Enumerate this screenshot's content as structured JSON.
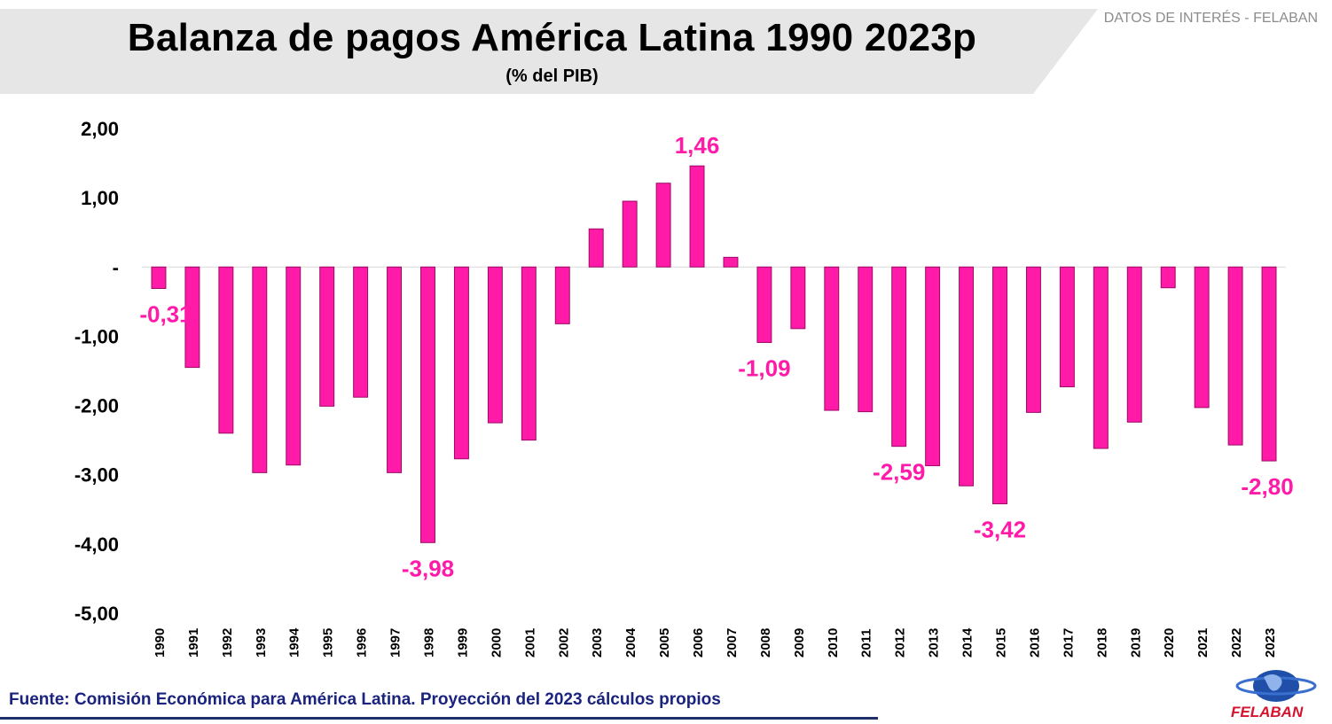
{
  "header": {
    "title": "Balanza de pagos América Latina 1990 2023p",
    "subtitle": "(% del PIB)",
    "tag_prefix": "DATOS DE INTERÉS - ",
    "tag_brand": "FELABAN"
  },
  "footer": {
    "source": "Fuente: Comisión Económica para América Latina. Proyección del 2023 cálculos propios",
    "logo_text": "FELABAN"
  },
  "colors": {
    "bar": "#ff1aa8",
    "label": "#ff1aa8",
    "axis": "#000000",
    "source": "#1a237e"
  },
  "chart_data": {
    "type": "bar",
    "categories": [
      "1990",
      "1991",
      "1992",
      "1993",
      "1994",
      "1995",
      "1996",
      "1997",
      "1998",
      "1999",
      "2000",
      "2001",
      "2002",
      "2003",
      "2004",
      "2005",
      "2006",
      "2007",
      "2008",
      "2009",
      "2010",
      "2011",
      "2012",
      "2013",
      "2014",
      "2015",
      "2016",
      "2017",
      "2018",
      "2019",
      "2020",
      "2021",
      "2022",
      "2023"
    ],
    "values": [
      -0.31,
      -1.45,
      -2.4,
      -2.97,
      -2.86,
      -2.01,
      -1.88,
      -2.97,
      -3.98,
      -2.77,
      -2.25,
      -2.5,
      -0.82,
      0.55,
      0.95,
      1.21,
      1.46,
      0.14,
      -1.09,
      -0.89,
      -2.07,
      -2.09,
      -2.59,
      -2.87,
      -3.16,
      -3.42,
      -2.1,
      -1.73,
      -2.62,
      -2.24,
      -0.3,
      -2.03,
      -2.57,
      -2.8
    ],
    "data_labels": [
      {
        "category": "1990",
        "text": "-0,31"
      },
      {
        "category": "1998",
        "text": "-3,98"
      },
      {
        "category": "2006",
        "text": "1,46"
      },
      {
        "category": "2008",
        "text": "-1,09"
      },
      {
        "category": "2012",
        "text": "-2,59"
      },
      {
        "category": "2015",
        "text": "-3,42"
      },
      {
        "category": "2023",
        "text": "-2,80"
      }
    ],
    "yticks": [
      {
        "value": 2,
        "label": "2,00"
      },
      {
        "value": 1,
        "label": "1,00"
      },
      {
        "value": 0,
        "label": "-"
      },
      {
        "value": -1,
        "label": "-1,00"
      },
      {
        "value": -2,
        "label": "-2,00"
      },
      {
        "value": -3,
        "label": "-3,00"
      },
      {
        "value": -4,
        "label": "-4,00"
      },
      {
        "value": -5,
        "label": "-5,00"
      }
    ],
    "ylim": [
      -5,
      2
    ],
    "grid": false,
    "legend": "none"
  }
}
